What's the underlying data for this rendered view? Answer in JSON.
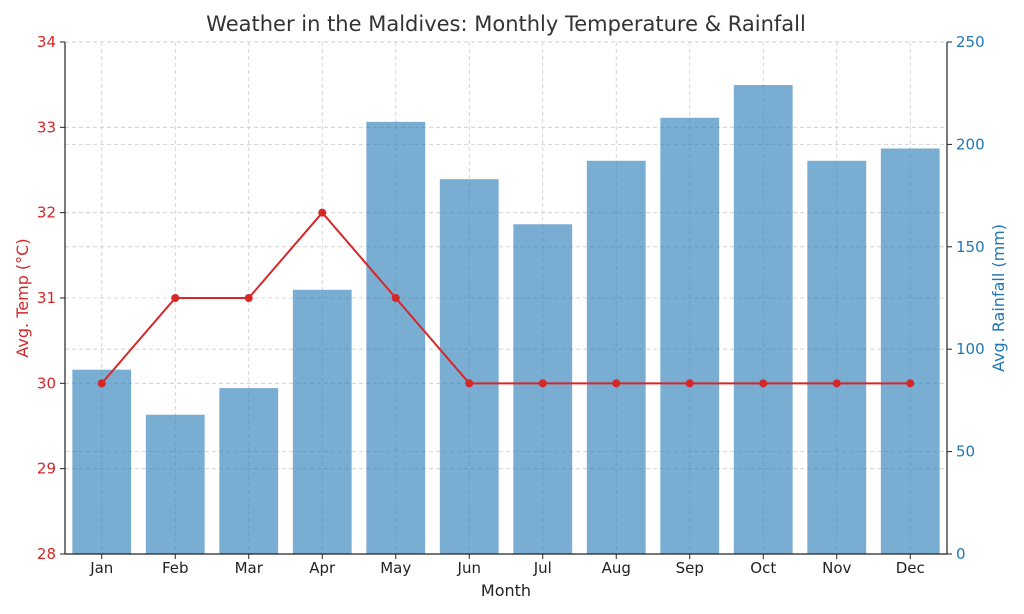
{
  "chart_data": {
    "type": "bar+line",
    "title": "Weather in the Maldives: Monthly Temperature & Rainfall",
    "xlabel": "Month",
    "categories": [
      "Jan",
      "Feb",
      "Mar",
      "Apr",
      "May",
      "Jun",
      "Jul",
      "Aug",
      "Sep",
      "Oct",
      "Nov",
      "Dec"
    ],
    "left_axis": {
      "label": "Avg. Temp (°C)",
      "ylim": [
        28,
        34
      ],
      "ticks": [
        28,
        29,
        30,
        31,
        32,
        33,
        34
      ],
      "color": "#d62728"
    },
    "right_axis": {
      "label": "Avg. Rainfall (mm)",
      "ylim": [
        0,
        250
      ],
      "ticks": [
        0,
        50,
        100,
        150,
        200,
        250
      ],
      "color": "#1f77b4"
    },
    "series": [
      {
        "name": "Avg. Temp (°C)",
        "type": "line",
        "axis": "left",
        "color": "#d62728",
        "values": [
          30,
          31,
          31,
          32,
          31,
          30,
          30,
          30,
          30,
          30,
          30,
          30
        ]
      },
      {
        "name": "Avg. Rainfall (mm)",
        "type": "bar",
        "axis": "right",
        "color": "#1f77b4",
        "values": [
          90,
          68,
          81,
          129,
          211,
          183,
          161,
          192,
          213,
          229,
          192,
          198
        ]
      }
    ],
    "grid": true,
    "title_color": "#333333",
    "tick_color": "#222222",
    "bar_opacity": 0.6
  }
}
